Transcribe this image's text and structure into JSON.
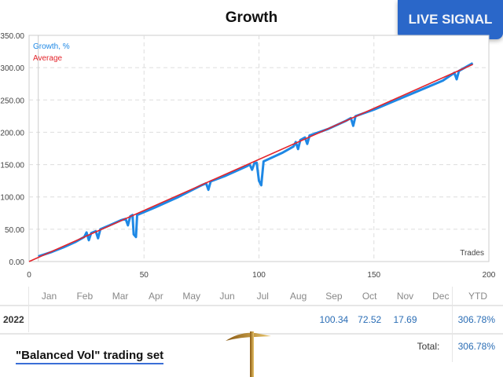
{
  "badge": "LIVE SIGNAL",
  "chart_data": {
    "type": "line",
    "title": "Growth",
    "xlabel": "Trades",
    "ylabel": "",
    "xlim": [
      0,
      200
    ],
    "ylim": [
      0,
      350
    ],
    "xticks": [
      "0",
      "50",
      "100",
      "150",
      "200"
    ],
    "yticks": [
      "0.00",
      "50.00",
      "100.00",
      "150.00",
      "200.00",
      "250.00",
      "300.00",
      "350.00"
    ],
    "grid": true,
    "legend": "top-left",
    "series": [
      {
        "name": "Growth, %",
        "color": "#1e88e5",
        "points": [
          [
            4,
            8
          ],
          [
            10,
            15
          ],
          [
            15,
            22
          ],
          [
            20,
            30
          ],
          [
            24,
            38
          ],
          [
            25,
            45
          ],
          [
            26,
            33
          ],
          [
            27,
            44
          ],
          [
            29,
            47
          ],
          [
            30,
            36
          ],
          [
            31,
            50
          ],
          [
            35,
            56
          ],
          [
            40,
            64
          ],
          [
            42,
            66
          ],
          [
            43,
            56
          ],
          [
            44,
            70
          ],
          [
            45,
            72
          ],
          [
            45.5,
            42
          ],
          [
            46.5,
            38
          ],
          [
            47,
            72
          ],
          [
            55,
            84
          ],
          [
            65,
            100
          ],
          [
            75,
            118
          ],
          [
            77,
            121
          ],
          [
            78,
            111
          ],
          [
            79,
            124
          ],
          [
            85,
            132
          ],
          [
            95,
            148
          ],
          [
            96,
            150
          ],
          [
            97,
            142
          ],
          [
            98,
            152
          ],
          [
            99,
            153
          ],
          [
            100,
            125
          ],
          [
            101,
            118
          ],
          [
            102,
            155
          ],
          [
            110,
            168
          ],
          [
            115,
            178
          ],
          [
            116,
            185
          ],
          [
            117,
            174
          ],
          [
            118,
            188
          ],
          [
            120,
            192
          ],
          [
            121,
            182
          ],
          [
            122,
            195
          ],
          [
            130,
            205
          ],
          [
            138,
            218
          ],
          [
            140,
            222
          ],
          [
            141,
            210
          ],
          [
            142,
            225
          ],
          [
            150,
            235
          ],
          [
            160,
            250
          ],
          [
            170,
            265
          ],
          [
            180,
            280
          ],
          [
            185,
            292
          ],
          [
            186,
            282
          ],
          [
            187,
            295
          ],
          [
            193,
            307
          ]
        ]
      },
      {
        "name": "Average",
        "color": "#e3242b",
        "points": [
          [
            0,
            0
          ],
          [
            193,
            305
          ]
        ]
      }
    ]
  },
  "table": {
    "months": [
      "Jan",
      "Feb",
      "Mar",
      "Apr",
      "May",
      "Jun",
      "Jul",
      "Aug",
      "Sep",
      "Oct",
      "Nov",
      "Dec"
    ],
    "ytd_label": "YTD",
    "rows": [
      {
        "year": "2022",
        "values": [
          "",
          "",
          "",
          "",
          "",
          "",
          "",
          "",
          "100.34",
          "72.52",
          "17.69",
          ""
        ],
        "ytd": "306.78%"
      }
    ],
    "total_label": "Total:",
    "total": "306.78%"
  },
  "caption": "\"Balanced Vol\" trading set"
}
